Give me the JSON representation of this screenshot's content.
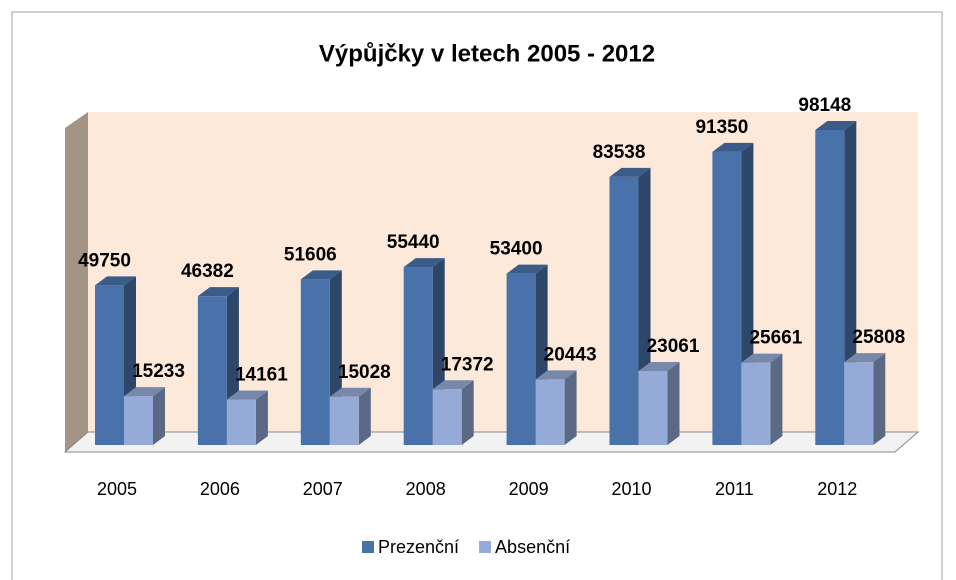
{
  "chart_data": {
    "type": "bar",
    "title": "Výpůjčky v letech 2005 - 2012",
    "categories": [
      "2005",
      "2006",
      "2007",
      "2008",
      "2009",
      "2010",
      "2011",
      "2012"
    ],
    "series": [
      {
        "name": "Prezenční",
        "color": "#4a72aa",
        "values": [
          49750,
          46382,
          51606,
          55440,
          53400,
          83538,
          91350,
          98148
        ]
      },
      {
        "name": "Absenční",
        "color": "#95aad6",
        "values": [
          15233,
          14161,
          15028,
          17372,
          20443,
          23061,
          25661,
          25808
        ]
      }
    ],
    "legend": "bottom"
  }
}
